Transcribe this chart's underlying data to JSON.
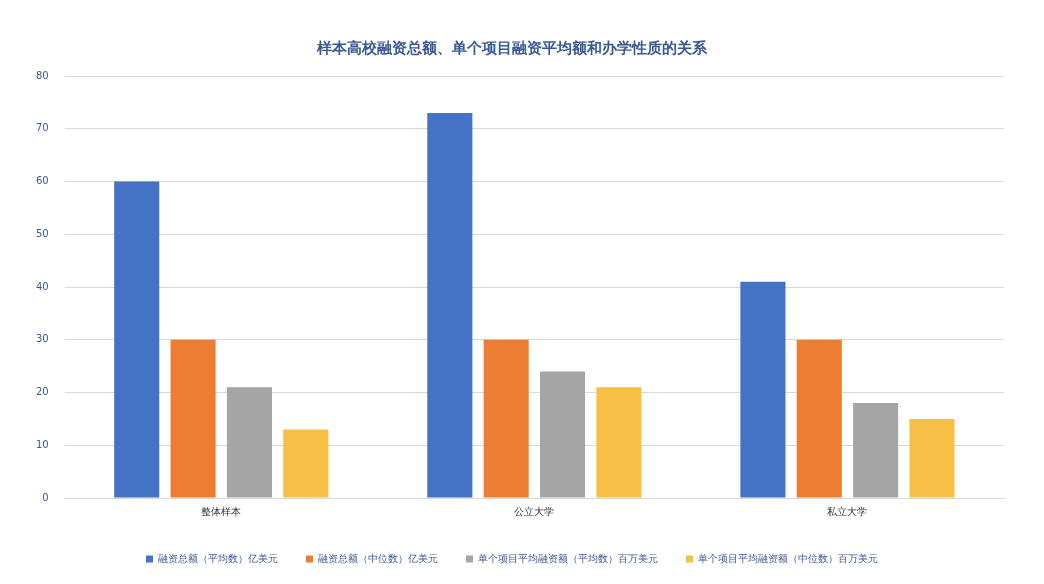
{
  "chart_data": {
    "type": "bar",
    "title": "样本高校融资总额、单个项目融资平均额和办学性质的关系",
    "categories": [
      "整体样本",
      "公立大学",
      "私立大学"
    ],
    "series": [
      {
        "name": "融资总额（平均数）亿美元",
        "color": "#4472c4",
        "values": [
          60,
          73,
          41
        ]
      },
      {
        "name": "融资总额（中位数）亿美元",
        "color": "#ed7d31",
        "values": [
          30,
          30,
          30
        ]
      },
      {
        "name": "单个项目平均融资额（平均数）百万美元",
        "color": "#a5a5a5",
        "values": [
          21,
          24,
          18
        ]
      },
      {
        "name": "单个项目平均融资额（中位数）百万美元",
        "color": "#f7bf45",
        "values": [
          13,
          21,
          15
        ]
      }
    ],
    "ylim": [
      0,
      80
    ],
    "yticks": [
      0,
      10,
      20,
      30,
      40,
      50,
      60,
      70,
      80
    ],
    "grid": "y",
    "legend": "bottom"
  }
}
